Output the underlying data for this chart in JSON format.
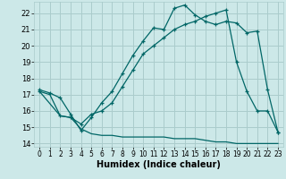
{
  "title": "",
  "xlabel": "Humidex (Indice chaleur)",
  "bg_color": "#cce8e8",
  "grid_color": "#aacccc",
  "line_color": "#006666",
  "line1_x": [
    0,
    1,
    2,
    3,
    4,
    5,
    6,
    7,
    8,
    9,
    10,
    11,
    12,
    13,
    14,
    15,
    16,
    17,
    18,
    19,
    20,
    21,
    22,
    23
  ],
  "line1_y": [
    17.3,
    17.1,
    16.8,
    15.8,
    14.8,
    15.6,
    16.5,
    17.2,
    18.3,
    19.4,
    20.3,
    21.1,
    21.0,
    22.3,
    22.5,
    21.9,
    21.5,
    21.3,
    21.5,
    21.4,
    20.8,
    20.9,
    17.3,
    14.7
  ],
  "line1_markers": [
    0,
    1,
    2,
    3,
    4,
    5,
    6,
    7,
    8,
    9,
    10,
    11,
    12,
    13,
    14,
    15,
    16,
    17,
    18,
    19,
    20,
    21,
    22,
    23
  ],
  "line2_x": [
    0,
    1,
    2,
    3,
    4,
    5,
    6,
    7,
    8,
    9,
    10,
    11,
    12,
    13,
    14,
    15,
    16,
    17,
    18,
    19,
    20,
    21,
    22,
    23
  ],
  "line2_y": [
    17.2,
    17.0,
    15.7,
    15.6,
    14.9,
    14.6,
    14.5,
    14.5,
    14.4,
    14.4,
    14.4,
    14.4,
    14.4,
    14.3,
    14.3,
    14.3,
    14.2,
    14.1,
    14.1,
    14.0,
    14.0,
    14.0,
    14.0,
    14.0
  ],
  "line3_x": [
    0,
    2,
    3,
    4,
    5,
    6,
    7,
    8,
    9,
    10,
    11,
    12,
    13,
    14,
    15,
    16,
    17,
    18,
    19,
    20,
    21,
    22,
    23
  ],
  "line3_y": [
    17.2,
    15.7,
    15.6,
    15.2,
    15.8,
    16.0,
    16.5,
    17.5,
    18.5,
    19.5,
    20.0,
    20.5,
    21.0,
    21.3,
    21.5,
    21.8,
    22.0,
    22.2,
    19.0,
    17.2,
    16.0,
    16.0,
    14.7
  ],
  "xlim": [
    -0.5,
    23.5
  ],
  "ylim": [
    13.8,
    22.7
  ],
  "xticks": [
    0,
    1,
    2,
    3,
    4,
    5,
    6,
    7,
    8,
    9,
    10,
    11,
    12,
    13,
    14,
    15,
    16,
    17,
    18,
    19,
    20,
    21,
    22,
    23
  ],
  "yticks": [
    14,
    15,
    16,
    17,
    18,
    19,
    20,
    21,
    22
  ]
}
